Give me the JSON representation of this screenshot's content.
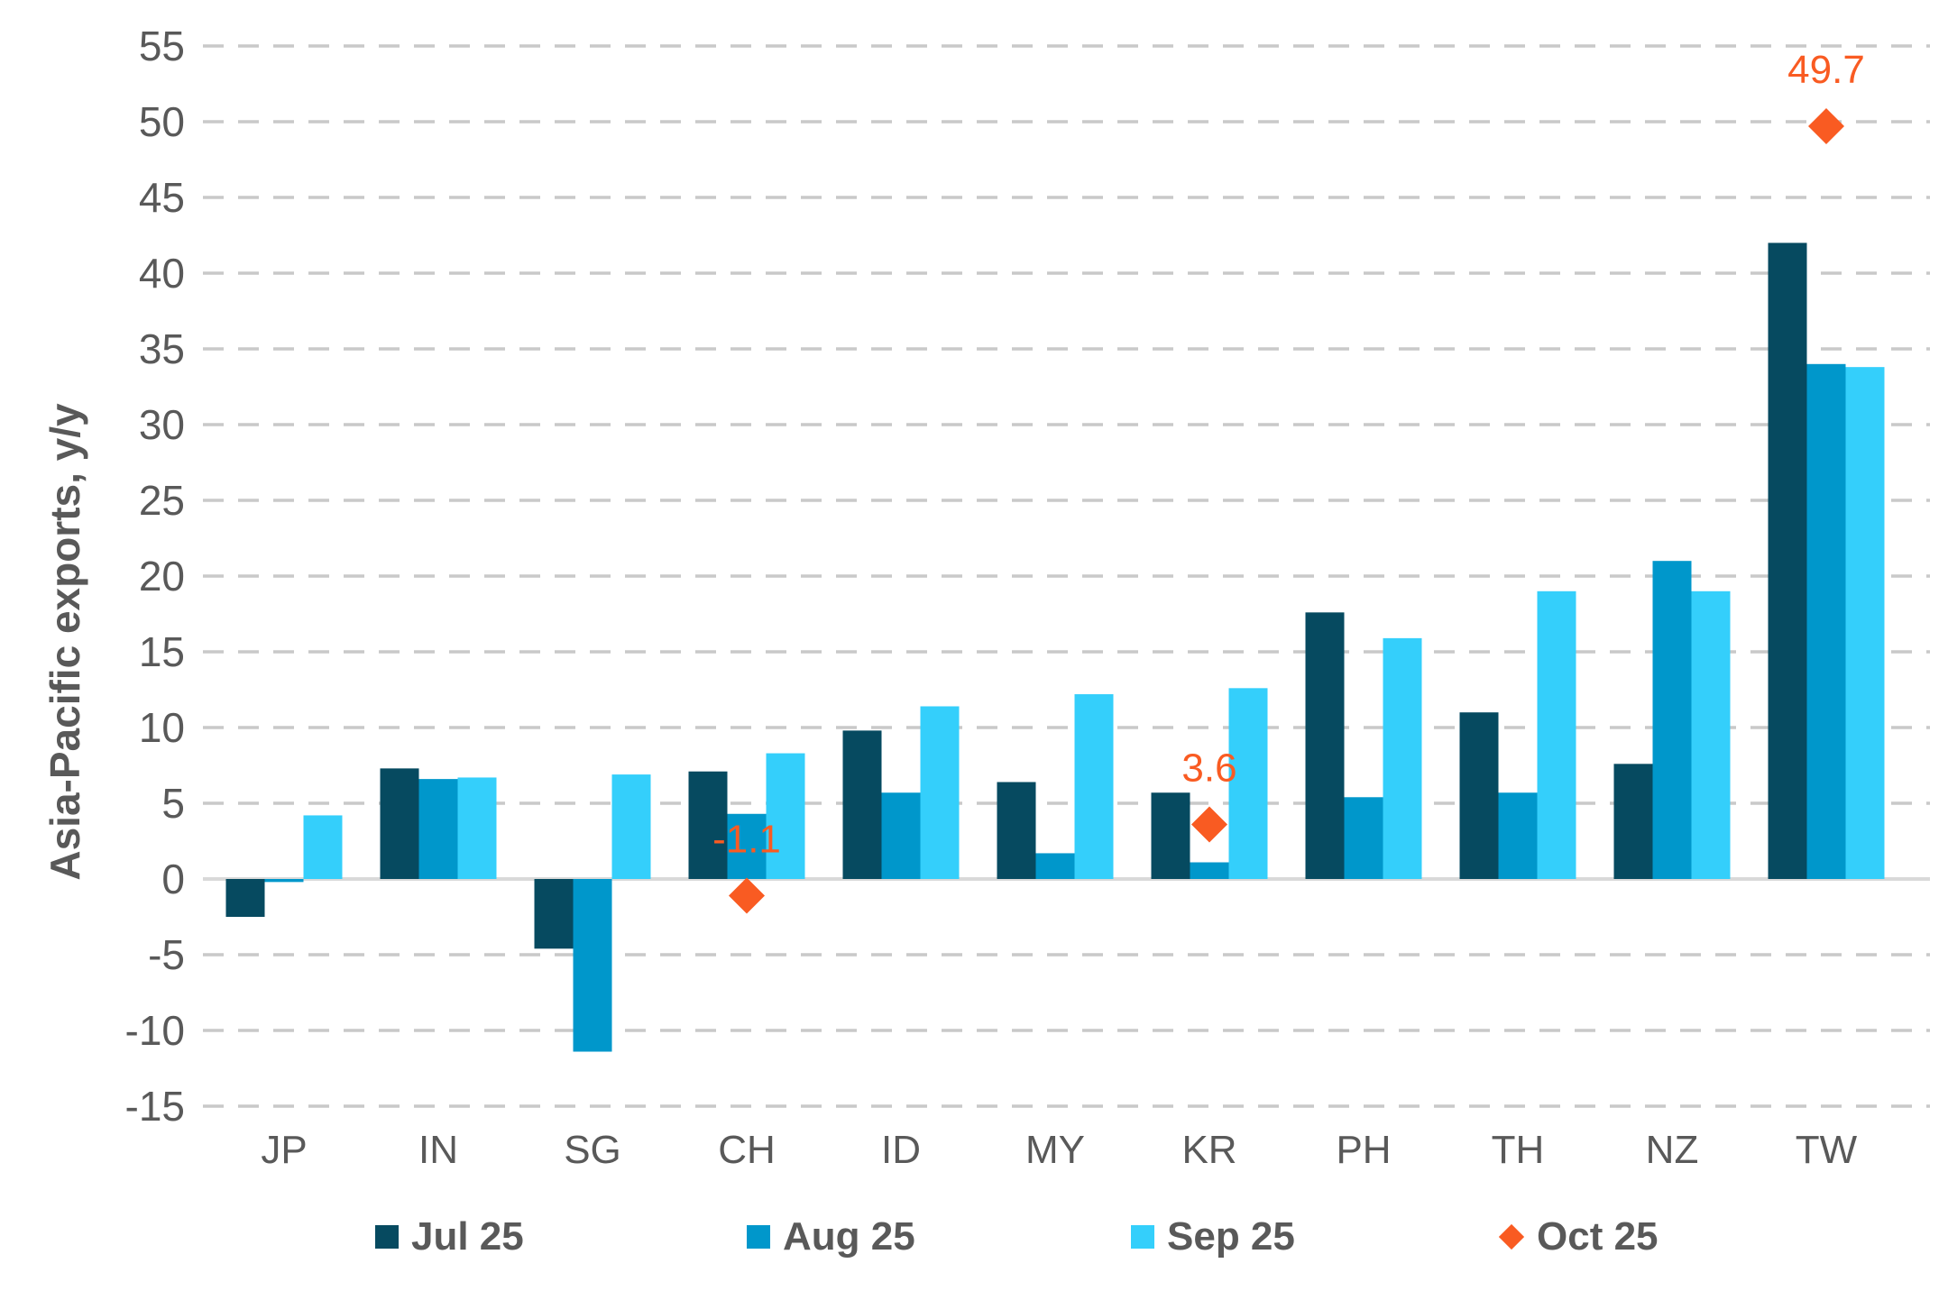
{
  "chart_data": {
    "type": "bar",
    "title": "",
    "ylabel": "Asia-Pacific exports, y/y",
    "xlabel": "",
    "categories": [
      "JP",
      "IN",
      "SG",
      "CH",
      "ID",
      "MY",
      "KR",
      "PH",
      "TH",
      "NZ",
      "TW"
    ],
    "series": [
      {
        "name": "Jul 25",
        "type": "bar",
        "color": "#064A60",
        "values": [
          -2.5,
          7.3,
          -4.6,
          7.1,
          9.8,
          6.4,
          5.7,
          17.6,
          11.0,
          7.6,
          42.0
        ]
      },
      {
        "name": "Aug 25",
        "type": "bar",
        "color": "#0097CB",
        "values": [
          -0.2,
          6.6,
          -11.4,
          4.3,
          5.7,
          1.7,
          1.1,
          5.4,
          5.7,
          21.0,
          34.0
        ]
      },
      {
        "name": "Sep 25",
        "type": "bar",
        "color": "#34CFFB",
        "values": [
          4.2,
          6.7,
          6.9,
          8.3,
          11.4,
          12.2,
          12.6,
          15.9,
          19.0,
          19.0,
          33.8
        ]
      },
      {
        "name": "Oct 25",
        "type": "scatter",
        "marker": "diamond",
        "color": "#F95B22",
        "values": [
          null,
          null,
          null,
          -1.1,
          null,
          null,
          3.6,
          null,
          null,
          null,
          49.7
        ],
        "labels": [
          null,
          null,
          null,
          "-1.1",
          null,
          null,
          "3.6",
          null,
          null,
          null,
          "49.7"
        ]
      }
    ],
    "ylim": [
      -15,
      55
    ],
    "yticks": [
      55,
      50,
      45,
      40,
      35,
      30,
      25,
      20,
      15,
      10,
      5,
      0,
      -5,
      -10,
      -15
    ],
    "grid": "horizontal-dashed",
    "legend_position": "bottom",
    "colors": {
      "grid": "#C9C9C9",
      "zero_line": "#D9D9D9",
      "axis_text": "#595959",
      "data_label": "#F95B22"
    }
  }
}
